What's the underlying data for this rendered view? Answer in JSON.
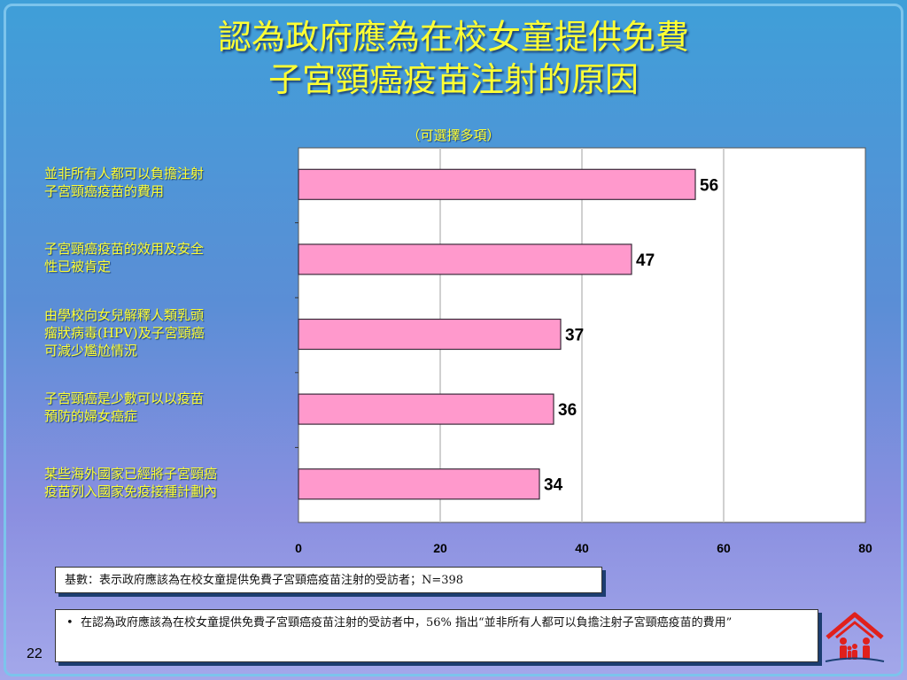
{
  "title_lines": [
    "認為政府應為在校女童提供免費",
    "子宮頸癌疫苗注射的原因"
  ],
  "subtitle": "（可選擇多項）",
  "base_note": "基數：表示政府應該為在校女童提供免費子宮頸癌疫苗注射的受訪者；N=398",
  "footnote": {
    "bullet": "•",
    "text": "在認為政府應該為在校女童提供免費子宮頸癌疫苗注射的受訪者中，56% 指出“並非所有人都可以負擔注射子宮頸癌疫苗的費用”"
  },
  "page_number": "22",
  "colors": {
    "bar_fill": "#ff99cc",
    "bar_stroke": "#3a2a3a",
    "plot_bg": "#ffffff",
    "gridline": "#c0c0c0",
    "title_text": "#ffff33"
  },
  "logo_icon": "family-house-icon",
  "chart_data": {
    "type": "bar",
    "orientation": "horizontal",
    "title": "",
    "xlabel": "",
    "ylabel": "",
    "categories": [
      "並非所有人都可以負擔注射子宮頸癌疫苗的費用",
      "子宮頸癌疫苗的效用及安全性已被肯定",
      "由學校向女兒解釋人類乳頭瘤狀病毒(HPV)及子宮頸癌可減少尷尬情況",
      "子宮頸癌是少數可以以疫苗預防的婦女癌症",
      "某些海外國家已經將子宮頸癌疫苗列入國家免疫接種計劃內"
    ],
    "category_label_lines": [
      [
        "並非所有人都可以負擔注射",
        "子宮頸癌疫苗的費用"
      ],
      [
        "子宮頸癌疫苗的效用及安全",
        "性已被肯定"
      ],
      [
        "由學校向女兒解釋人類乳頭",
        "瘤狀病毒(HPV)及子宮頸癌",
        "可減少尷尬情況"
      ],
      [
        "子宮頸癌是少數可以以疫苗",
        "預防的婦女癌症"
      ],
      [
        "某些海外國家已經將子宮頸癌",
        "疫苗列入國家免疫接種計劃內"
      ]
    ],
    "values": [
      56,
      47,
      37,
      36,
      34
    ],
    "data_labels": [
      "56",
      "47",
      "37",
      "36",
      "34"
    ],
    "xlim": [
      0,
      80
    ],
    "xticks": [
      0,
      20,
      40,
      60,
      80
    ],
    "grid": true,
    "legend": "none"
  }
}
